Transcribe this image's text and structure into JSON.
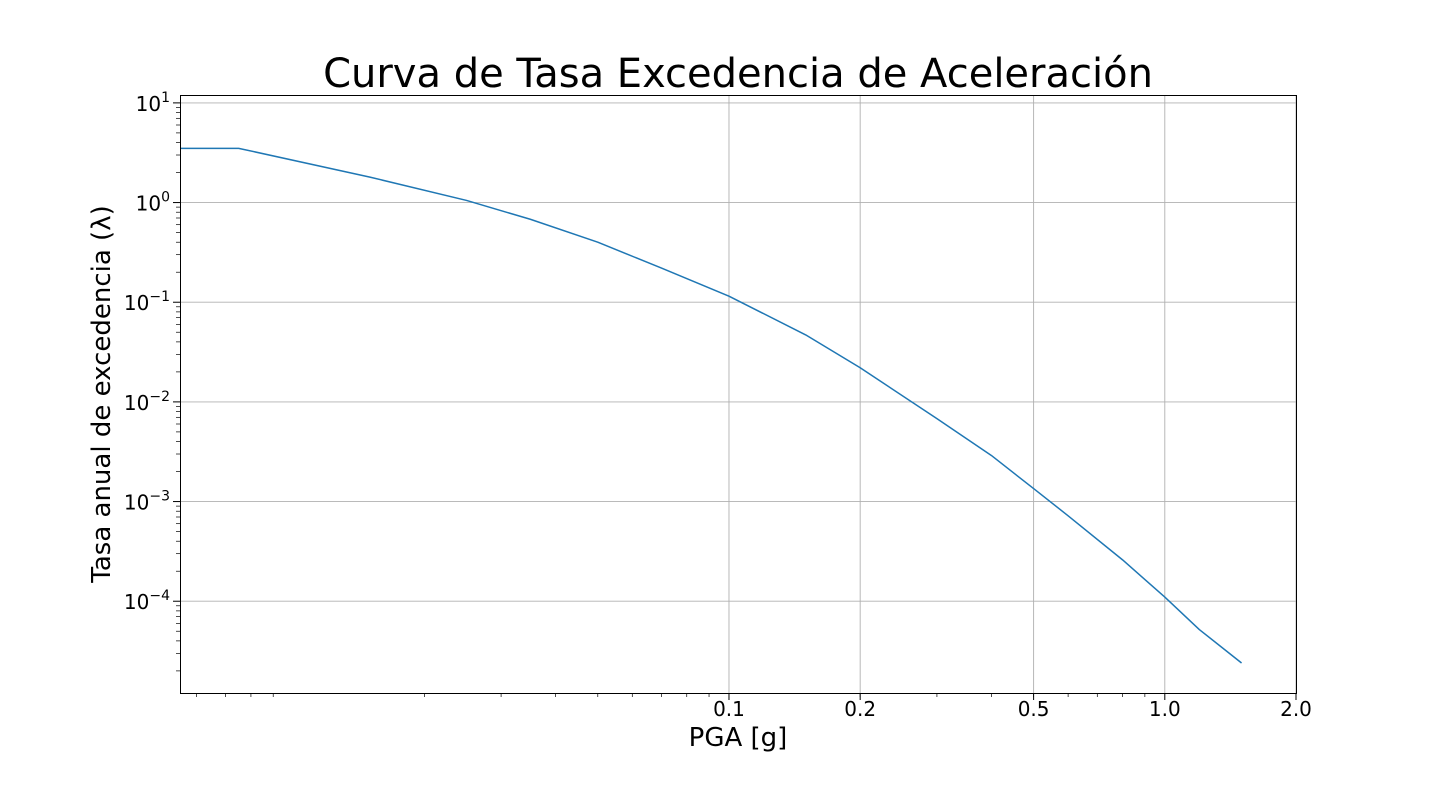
{
  "chart_data": {
    "type": "line",
    "title": "Curva de Tasa Excedencia de Aceleración",
    "xlabel": "PGA [g]",
    "ylabel": "Tasa anual de excedencia (λ)",
    "xscale": "log",
    "yscale": "log",
    "grid": true,
    "xlim": [
      0.0055,
      2.0
    ],
    "ylim": [
      1.2e-05,
      12
    ],
    "x_ticks": [
      {
        "value": 0.1,
        "label": "0.1"
      },
      {
        "value": 0.2,
        "label": "0.2"
      },
      {
        "value": 0.5,
        "label": "0.5"
      },
      {
        "value": 1.0,
        "label": "1.0"
      },
      {
        "value": 2.0,
        "label": "2.0"
      }
    ],
    "y_ticks": [
      {
        "value": 10,
        "base": "10",
        "exp": "1"
      },
      {
        "value": 1,
        "base": "10",
        "exp": "0"
      },
      {
        "value": 0.1,
        "base": "10",
        "exp": "−1"
      },
      {
        "value": 0.01,
        "base": "10",
        "exp": "−2"
      },
      {
        "value": 0.001,
        "base": "10",
        "exp": "−3"
      },
      {
        "value": 0.0001,
        "base": "10",
        "exp": "−4"
      }
    ],
    "series": [
      {
        "color": "#1f77b4",
        "x": [
          0.0055,
          0.0075,
          0.015,
          0.025,
          0.035,
          0.05,
          0.07,
          0.1,
          0.15,
          0.2,
          0.3,
          0.4,
          0.5,
          0.6,
          0.8,
          1.0,
          1.2,
          1.5
        ],
        "y": [
          3.5,
          3.5,
          1.8,
          1.05,
          0.68,
          0.4,
          0.22,
          0.115,
          0.047,
          0.022,
          0.0068,
          0.0029,
          0.00135,
          0.00072,
          0.00026,
          0.00011,
          5.2e-05,
          2.4e-05
        ]
      }
    ]
  }
}
